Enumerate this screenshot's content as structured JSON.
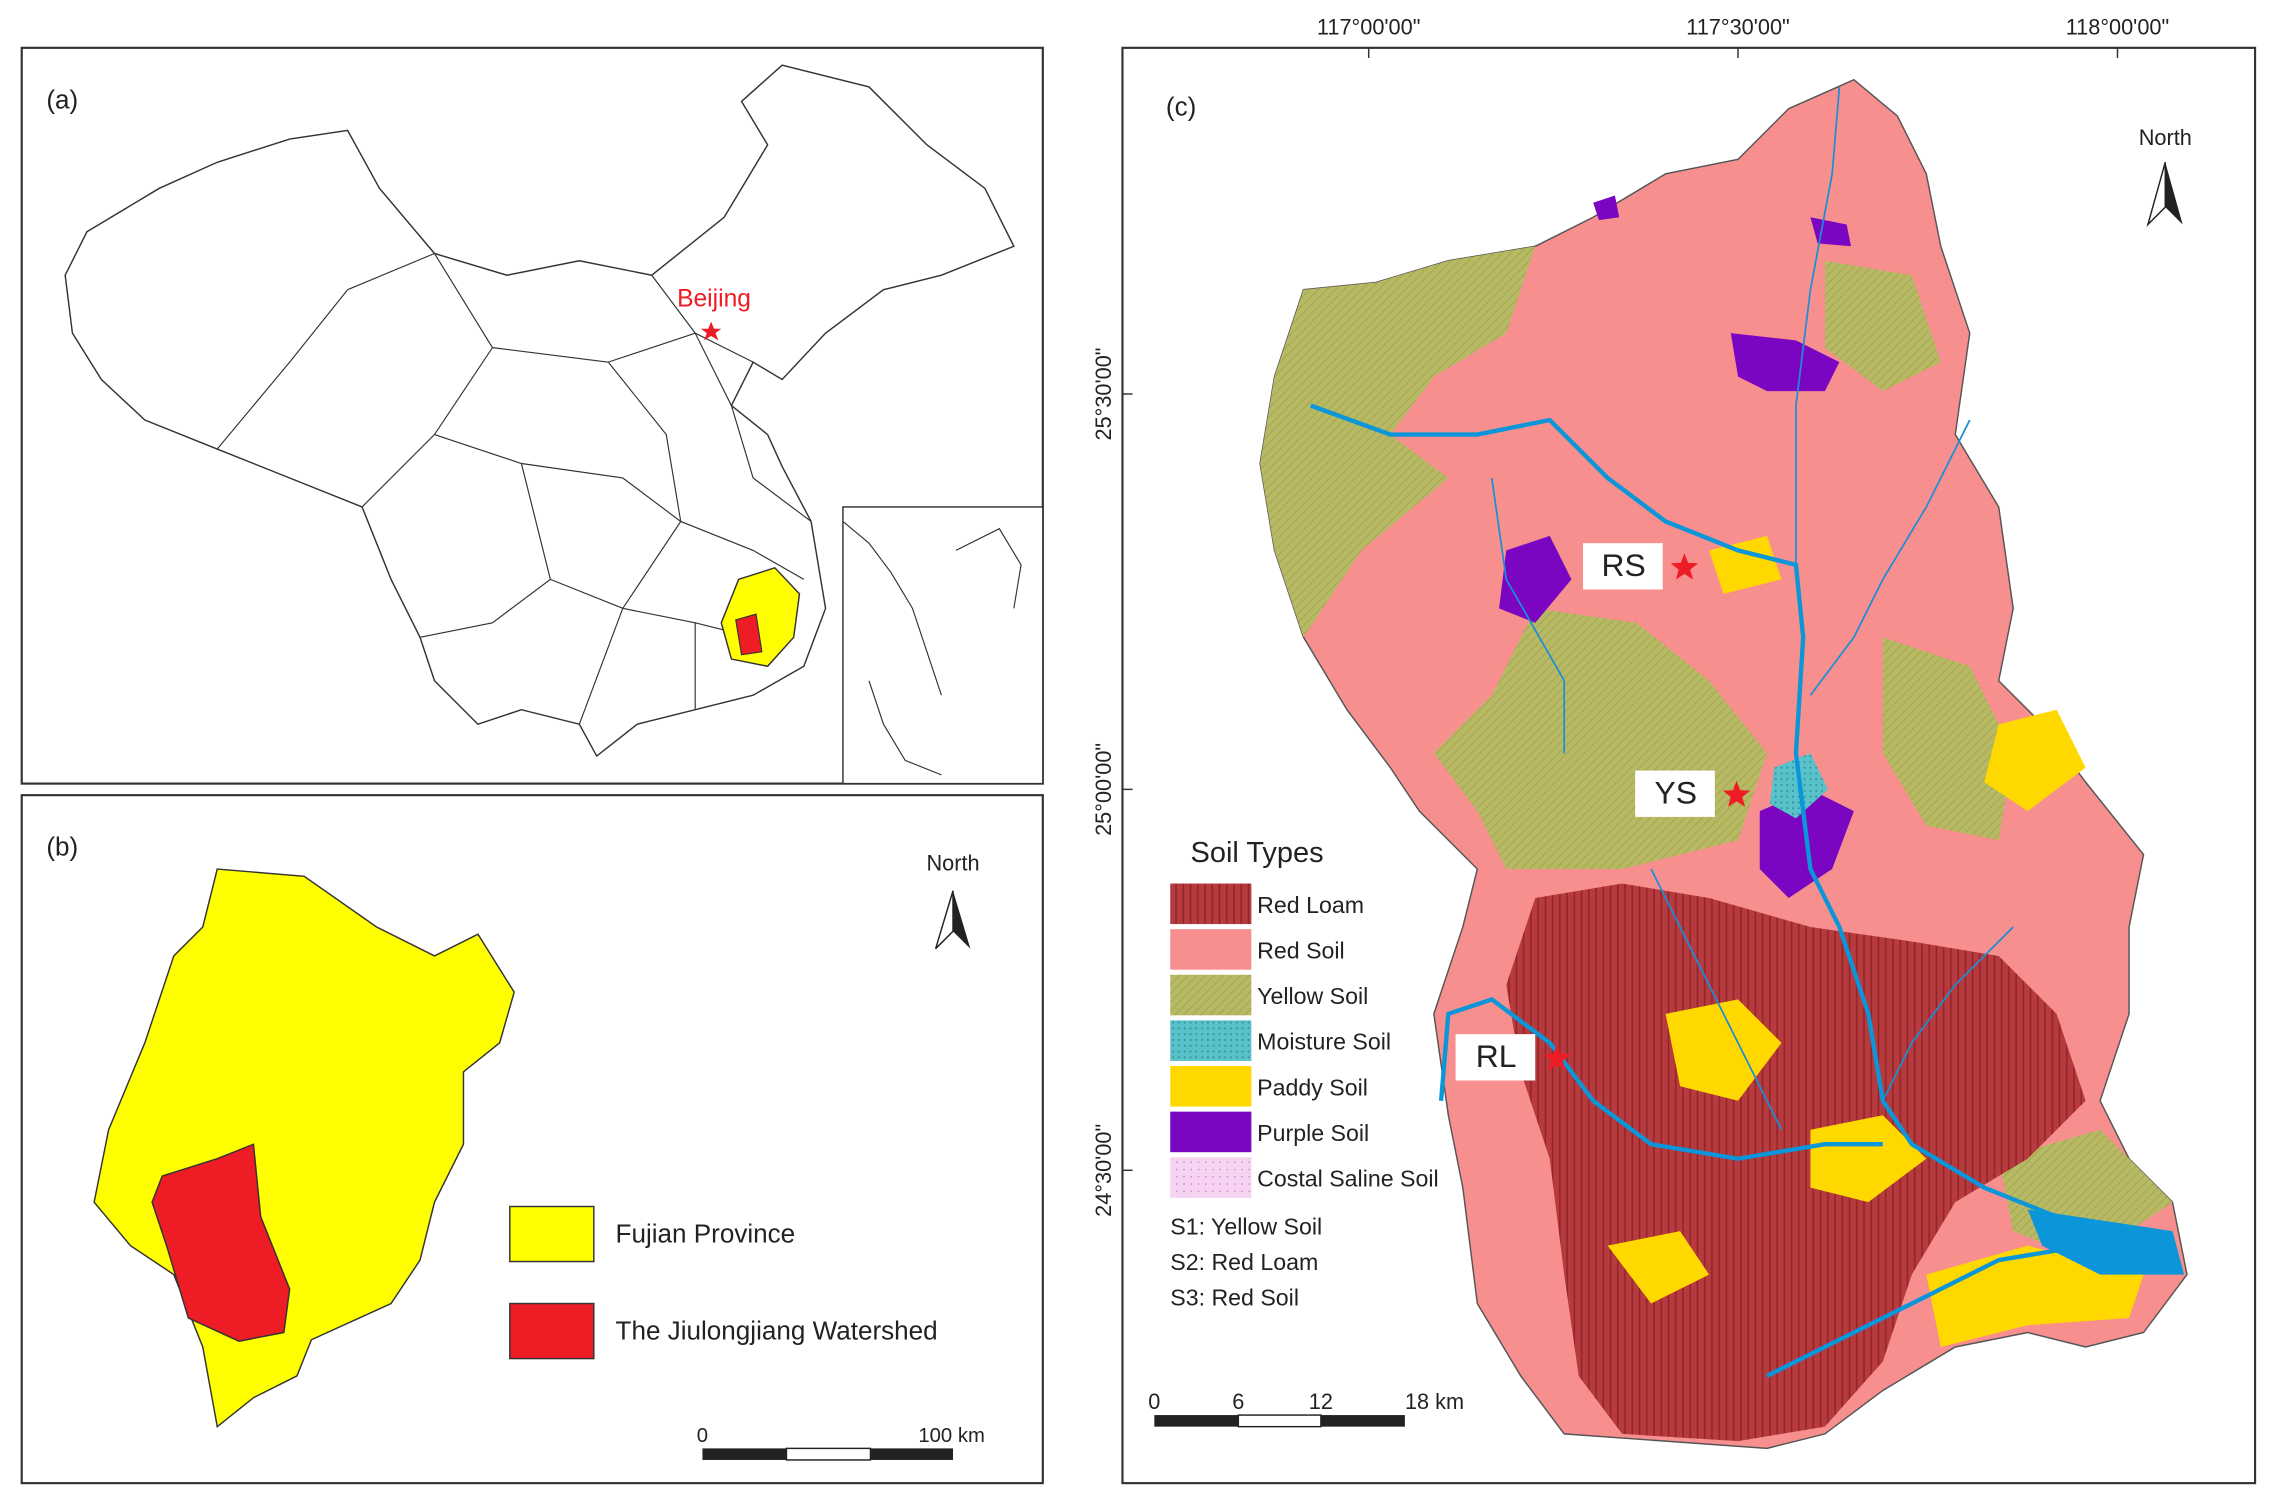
{
  "panel_a": {
    "label": "(a)",
    "city": "Beijing"
  },
  "panel_b": {
    "label": "(b)",
    "north": "North",
    "legend": [
      {
        "name": "Fujian Province",
        "color": "#ffff00"
      },
      {
        "name": "The Jiulongjiang Watershed",
        "color": "#ee1c24"
      }
    ],
    "scale": [
      "0",
      "100 km"
    ]
  },
  "panel_c": {
    "label": "(c)",
    "north": "North",
    "lon_labels": [
      "117°00'00\"",
      "117°30'00\"",
      "118°00'00\""
    ],
    "lat_labels": [
      "25°30'00\"",
      "25°00'00\"",
      "24°30'00\""
    ],
    "sites": [
      "RS",
      "YS",
      "RL"
    ],
    "legend_title": "Soil Types",
    "legend": [
      {
        "name": "Red Loam",
        "color": "#b73a3e"
      },
      {
        "name": "Red Soil",
        "color": "#f78f8f"
      },
      {
        "name": "Yellow Soil",
        "color": "#b8b964"
      },
      {
        "name": "Moisture Soil",
        "color": "#58c1c9"
      },
      {
        "name": "Paddy Soil",
        "color": "#ffd800"
      },
      {
        "name": "Purple Soil",
        "color": "#7a06c2"
      },
      {
        "name": "Costal Saline Soil",
        "color": "#f7d3f2"
      }
    ],
    "notes": [
      "S1: Yellow Soil",
      "S2: Red Loam",
      "S3: Red Soil"
    ],
    "scale": [
      "0",
      "6",
      "12",
      "18 km"
    ]
  }
}
